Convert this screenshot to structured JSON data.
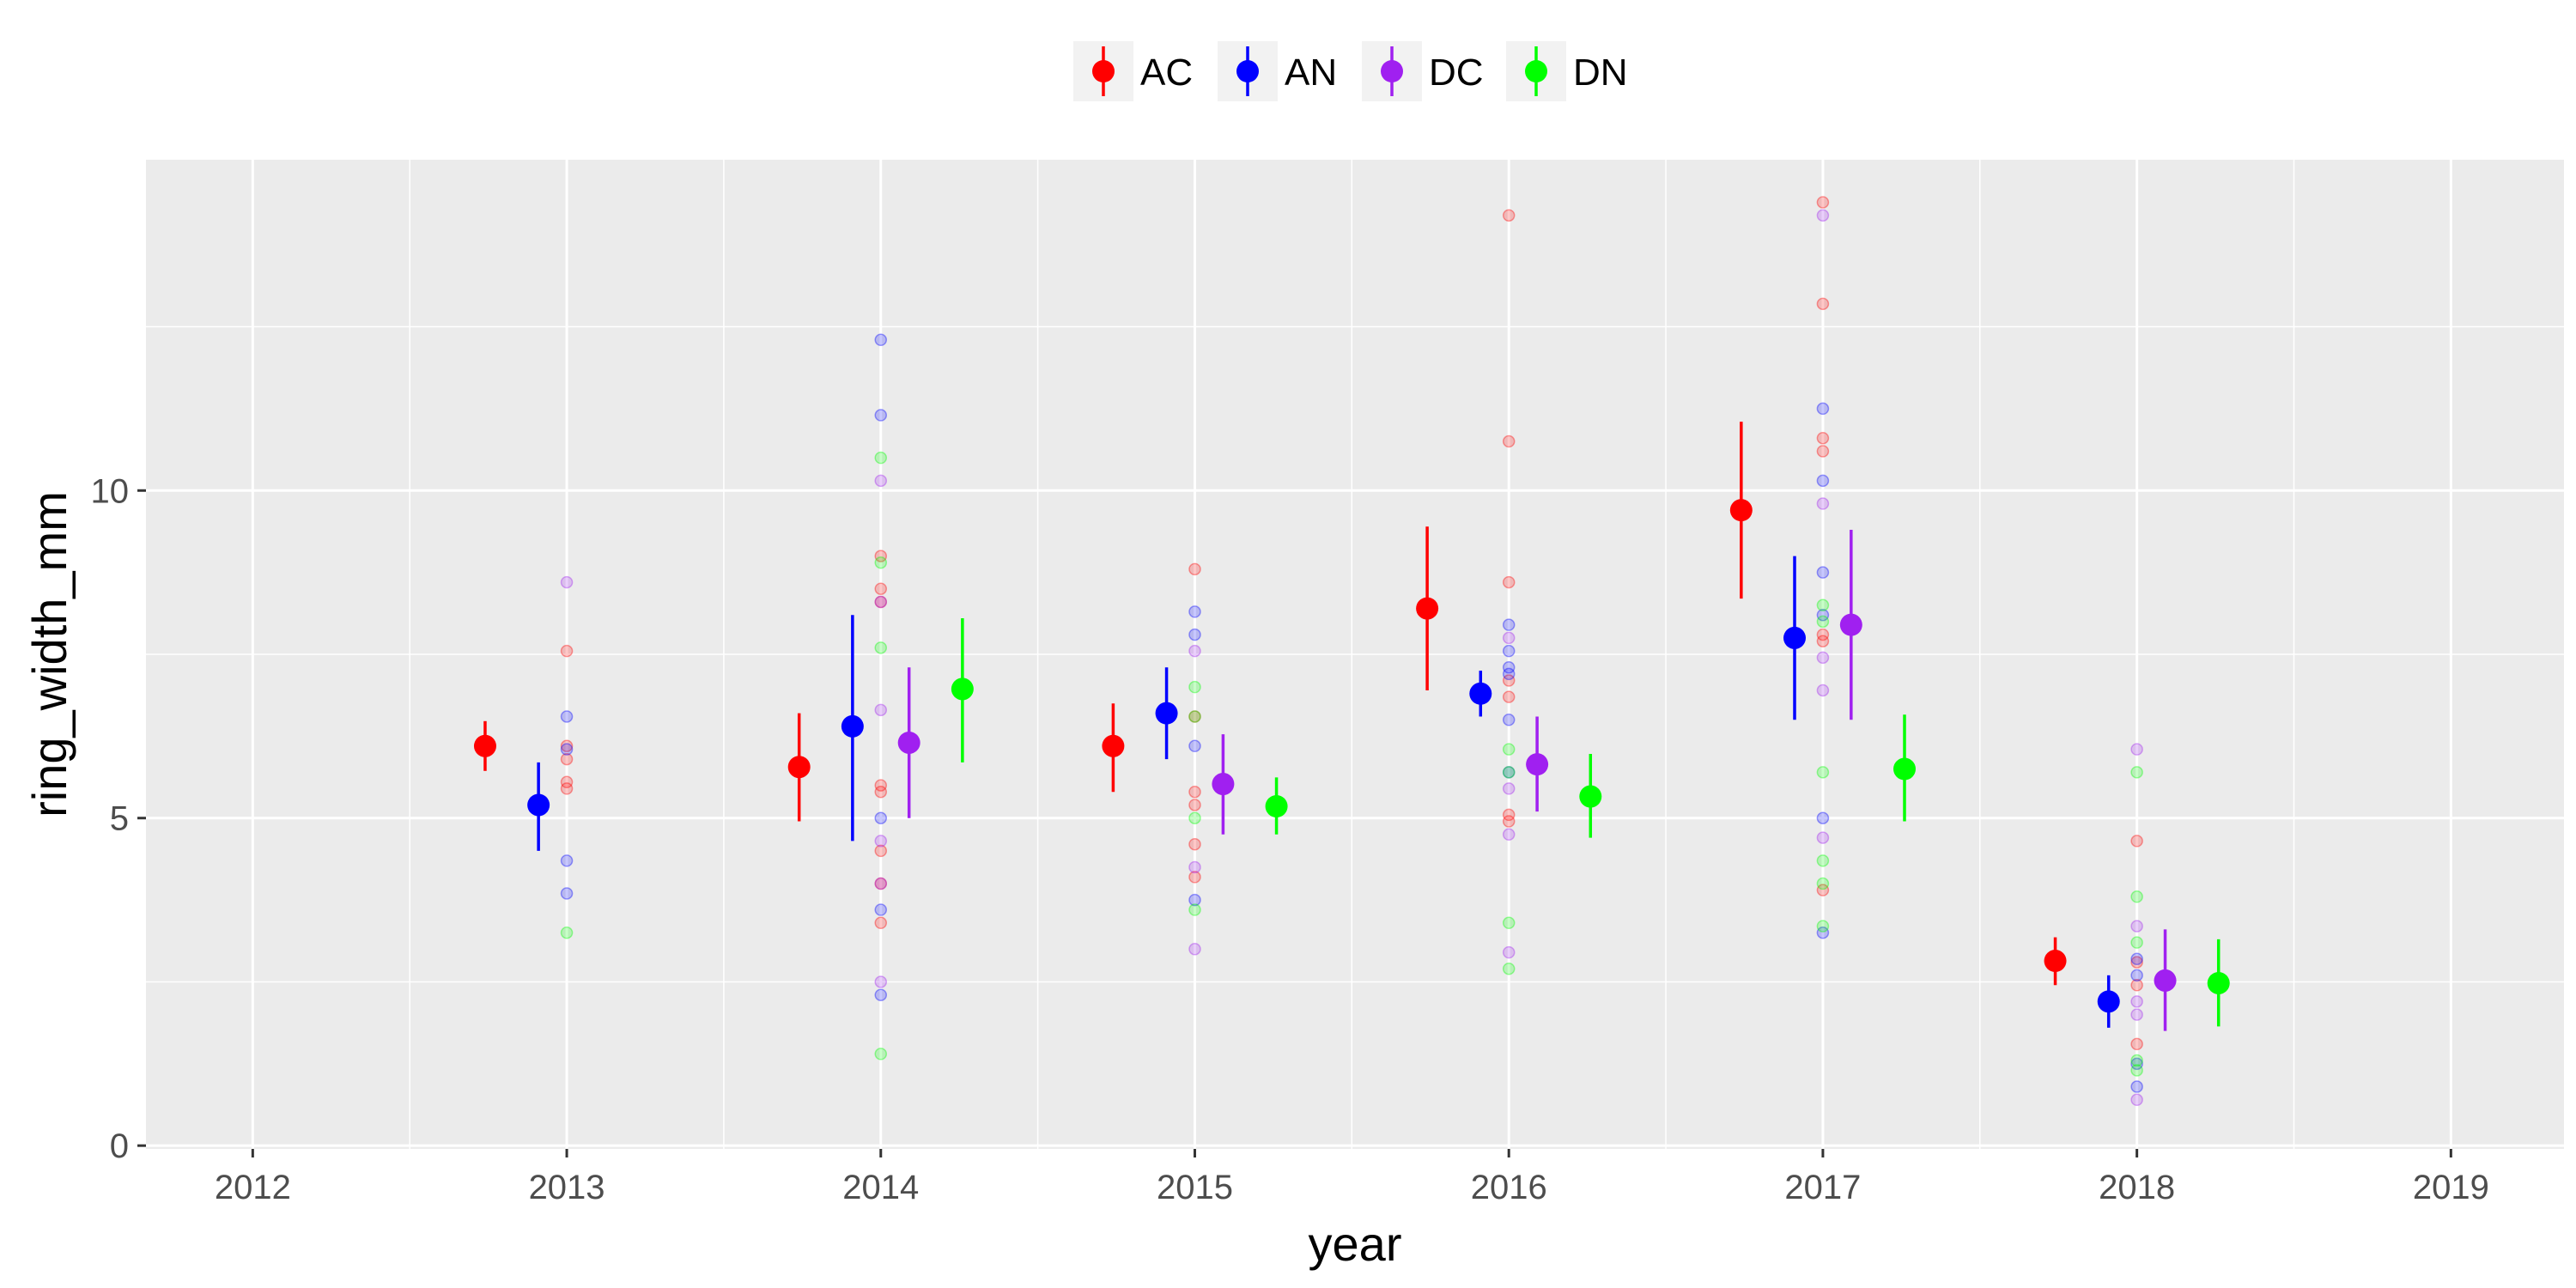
{
  "chart_data": {
    "type": "scatter",
    "title": "",
    "xlabel": "year",
    "ylabel": "ring_width_mm",
    "xlim": [
      2011.66,
      2019.36
    ],
    "ylim": [
      -0.05,
      15.05
    ],
    "x_ticks": [
      2012,
      2013,
      2014,
      2015,
      2016,
      2017,
      2018,
      2019
    ],
    "x_tick_labels": [
      "2012",
      "2013",
      "2014",
      "2015",
      "2016",
      "2017",
      "2018",
      "2019"
    ],
    "y_ticks": [
      0,
      5,
      10
    ],
    "y_tick_labels": [
      "0",
      "5",
      "10"
    ],
    "grid": true,
    "legend_position": "top",
    "series": [
      {
        "name": "AC",
        "color": "#ff0000",
        "dodge": -0.26,
        "summary": [
          {
            "x": 2013,
            "mean": 6.1,
            "low": 5.72,
            "high": 6.48
          },
          {
            "x": 2014,
            "mean": 5.78,
            "low": 4.95,
            "high": 6.6
          },
          {
            "x": 2015,
            "mean": 6.1,
            "low": 5.4,
            "high": 6.75
          },
          {
            "x": 2016,
            "mean": 8.2,
            "low": 6.95,
            "high": 9.45
          },
          {
            "x": 2017,
            "mean": 9.7,
            "low": 8.35,
            "high": 11.05
          },
          {
            "x": 2018,
            "mean": 2.82,
            "low": 2.45,
            "high": 3.18
          }
        ],
        "observations": [
          {
            "x": 2013,
            "values": [
              7.55,
              6.1,
              5.9,
              5.55,
              5.45
            ]
          },
          {
            "x": 2014,
            "values": [
              9.0,
              8.5,
              8.3,
              5.5,
              5.4,
              4.5,
              4.0,
              3.4
            ]
          },
          {
            "x": 2015,
            "values": [
              8.8,
              6.55,
              5.4,
              5.2,
              4.6,
              4.1
            ]
          },
          {
            "x": 2016,
            "values": [
              14.2,
              10.75,
              8.6,
              7.1,
              6.85,
              5.05,
              4.95
            ]
          },
          {
            "x": 2017,
            "values": [
              14.4,
              12.85,
              10.8,
              10.6,
              7.8,
              7.7,
              3.9
            ]
          },
          {
            "x": 2018,
            "values": [
              4.65,
              2.8,
              2.45,
              1.55
            ]
          }
        ]
      },
      {
        "name": "AN",
        "color": "#0000ff",
        "dodge": -0.09,
        "summary": [
          {
            "x": 2013,
            "mean": 5.2,
            "low": 4.5,
            "high": 5.85
          },
          {
            "x": 2014,
            "mean": 6.4,
            "low": 4.65,
            "high": 8.1
          },
          {
            "x": 2015,
            "mean": 6.6,
            "low": 5.9,
            "high": 7.3
          },
          {
            "x": 2016,
            "mean": 6.9,
            "low": 6.55,
            "high": 7.25
          },
          {
            "x": 2017,
            "mean": 7.75,
            "low": 6.5,
            "high": 9.0
          },
          {
            "x": 2018,
            "mean": 2.2,
            "low": 1.8,
            "high": 2.6
          }
        ],
        "observations": [
          {
            "x": 2013,
            "values": [
              6.55,
              6.05,
              4.35,
              3.85
            ]
          },
          {
            "x": 2014,
            "values": [
              12.3,
              11.15,
              5.0,
              3.6,
              2.3
            ]
          },
          {
            "x": 2015,
            "values": [
              8.15,
              7.8,
              6.1,
              3.75
            ]
          },
          {
            "x": 2016,
            "values": [
              7.95,
              7.55,
              7.3,
              7.2,
              6.5,
              5.7
            ]
          },
          {
            "x": 2017,
            "values": [
              11.25,
              10.15,
              8.75,
              8.1,
              5.0,
              3.25
            ]
          },
          {
            "x": 2018,
            "values": [
              2.85,
              2.6,
              1.25,
              0.9
            ]
          }
        ]
      },
      {
        "name": "DC",
        "color": "#a020f0",
        "dodge": 0.09,
        "summary": [
          {
            "x": 2014,
            "mean": 6.15,
            "low": 5.0,
            "high": 7.3
          },
          {
            "x": 2015,
            "mean": 5.52,
            "low": 4.75,
            "high": 6.28
          },
          {
            "x": 2016,
            "mean": 5.82,
            "low": 5.1,
            "high": 6.55
          },
          {
            "x": 2017,
            "mean": 7.95,
            "low": 6.5,
            "high": 9.4
          },
          {
            "x": 2018,
            "mean": 2.52,
            "low": 1.75,
            "high": 3.3
          }
        ],
        "observations": [
          {
            "x": 2013,
            "values": [
              8.6
            ]
          },
          {
            "x": 2014,
            "values": [
              10.15,
              8.3,
              6.65,
              4.65,
              4.0,
              2.5
            ]
          },
          {
            "x": 2015,
            "values": [
              7.55,
              4.25,
              3.0
            ]
          },
          {
            "x": 2016,
            "values": [
              7.75,
              5.45,
              4.75,
              2.95
            ]
          },
          {
            "x": 2017,
            "values": [
              14.2,
              9.8,
              7.45,
              6.95,
              4.7
            ]
          },
          {
            "x": 2018,
            "values": [
              6.05,
              3.35,
              2.2,
              2.0,
              0.7
            ]
          }
        ]
      },
      {
        "name": "DN",
        "color": "#00ff00",
        "dodge": 0.26,
        "summary": [
          {
            "x": 2014,
            "mean": 6.97,
            "low": 5.85,
            "high": 8.05
          },
          {
            "x": 2015,
            "mean": 5.18,
            "low": 4.75,
            "high": 5.62
          },
          {
            "x": 2016,
            "mean": 5.33,
            "low": 4.7,
            "high": 5.98
          },
          {
            "x": 2017,
            "mean": 5.75,
            "low": 4.95,
            "high": 6.58
          },
          {
            "x": 2018,
            "mean": 2.48,
            "low": 1.82,
            "high": 3.15
          }
        ],
        "observations": [
          {
            "x": 2013,
            "values": [
              3.25
            ]
          },
          {
            "x": 2014,
            "values": [
              10.5,
              8.9,
              7.6,
              1.4
            ]
          },
          {
            "x": 2015,
            "values": [
              7.0,
              6.55,
              5.0,
              3.6
            ]
          },
          {
            "x": 2016,
            "values": [
              6.05,
              5.7,
              3.4,
              2.7
            ]
          },
          {
            "x": 2017,
            "values": [
              8.25,
              8.0,
              5.7,
              4.35,
              4.0,
              3.35
            ]
          },
          {
            "x": 2018,
            "values": [
              5.7,
              3.8,
              3.1,
              1.3,
              1.15
            ]
          }
        ]
      }
    ]
  }
}
